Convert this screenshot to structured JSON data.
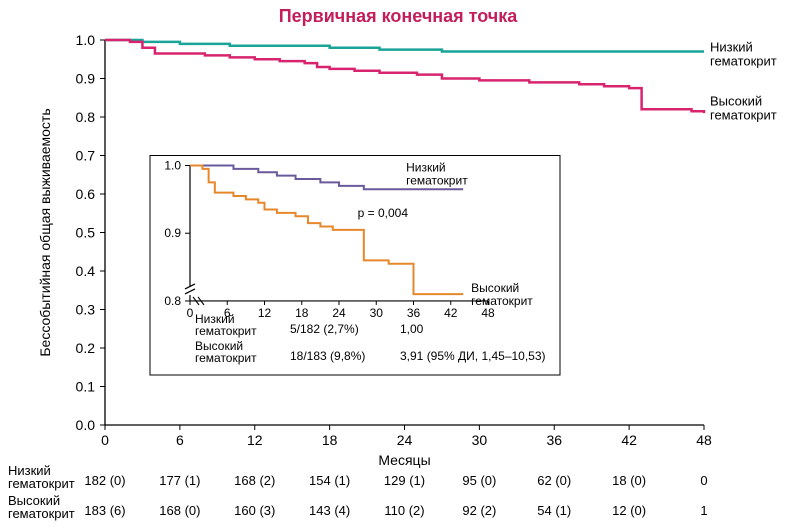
{
  "title": "Первичная конечная точка",
  "title_color": "#c41e5a",
  "background_color": "#ffffff",
  "main_chart": {
    "type": "kaplan-meier",
    "xlabel": "Месяцы",
    "ylabel": "Бессобытийная общая выживаемость",
    "xlim": [
      0,
      48
    ],
    "ylim": [
      0.0,
      1.0
    ],
    "xtick_step": 6,
    "ytick_step": 0.1,
    "xticks": [
      0,
      6,
      12,
      18,
      24,
      30,
      36,
      42,
      48
    ],
    "yticks": [
      "0.0",
      "0.1",
      "0.2",
      "0.3",
      "0.4",
      "0.5",
      "0.6",
      "0.7",
      "0.8",
      "0.9",
      "1.0"
    ],
    "label_fontsize": 14,
    "tick_fontsize": 14,
    "axis_color": "#000000",
    "line_width_main": 2.5,
    "line_width_axis": 1.2,
    "series": [
      {
        "name": "Низкий гематокрит",
        "label": "Низкий\nгематокрит",
        "color": "#1aa397",
        "points": [
          [
            0,
            1.0
          ],
          [
            3,
            0.995
          ],
          [
            6,
            0.99
          ],
          [
            10,
            0.985
          ],
          [
            14,
            0.985
          ],
          [
            18,
            0.98
          ],
          [
            22,
            0.975
          ],
          [
            26,
            0.975
          ],
          [
            27,
            0.97
          ],
          [
            34,
            0.97
          ],
          [
            38,
            0.97
          ],
          [
            42,
            0.97
          ],
          [
            48,
            0.97
          ]
        ]
      },
      {
        "name": "Высокий гематокрит",
        "label": "Высокий\nгематокрит",
        "color": "#d8246f",
        "points": [
          [
            0,
            1.0
          ],
          [
            2,
            0.995
          ],
          [
            3,
            0.98
          ],
          [
            4,
            0.965
          ],
          [
            6,
            0.965
          ],
          [
            8,
            0.96
          ],
          [
            10,
            0.955
          ],
          [
            12,
            0.95
          ],
          [
            14,
            0.945
          ],
          [
            16,
            0.94
          ],
          [
            17,
            0.93
          ],
          [
            18,
            0.925
          ],
          [
            20,
            0.92
          ],
          [
            22,
            0.915
          ],
          [
            25,
            0.91
          ],
          [
            27,
            0.9
          ],
          [
            29,
            0.9
          ],
          [
            30,
            0.895
          ],
          [
            34,
            0.89
          ],
          [
            36,
            0.89
          ],
          [
            38,
            0.885
          ],
          [
            40,
            0.88
          ],
          [
            42,
            0.875
          ],
          [
            43,
            0.82
          ],
          [
            47,
            0.815
          ],
          [
            48,
            0.81
          ]
        ]
      }
    ]
  },
  "inset_chart": {
    "type": "kaplan-meier",
    "xlim": [
      0,
      48
    ],
    "ylim": [
      0.8,
      1.0
    ],
    "xticks": [
      0,
      6,
      12,
      18,
      24,
      30,
      36,
      42,
      48
    ],
    "yticks": [
      "0.8",
      "0.9",
      "1.0"
    ],
    "axis_color": "#000000",
    "line_width_main": 2.0,
    "pvalue_label": "p = 0,004",
    "series": [
      {
        "name": "Низкий гематокрит",
        "label": "Низкий\nгематокрит",
        "color": "#6a5a9c",
        "points": [
          [
            0,
            1.0
          ],
          [
            5,
            1.0
          ],
          [
            7,
            0.995
          ],
          [
            9,
            0.995
          ],
          [
            11,
            0.99
          ],
          [
            14,
            0.985
          ],
          [
            17,
            0.98
          ],
          [
            21,
            0.975
          ],
          [
            24,
            0.97
          ],
          [
            27,
            0.97
          ],
          [
            28,
            0.965
          ],
          [
            32,
            0.965
          ],
          [
            36,
            0.965
          ],
          [
            42,
            0.965
          ],
          [
            44,
            0.965
          ]
        ]
      },
      {
        "name": "Высокий гематокрит",
        "label": "Высокий\nгематокрит",
        "color": "#e7872b",
        "points": [
          [
            0,
            1.0
          ],
          [
            2,
            0.995
          ],
          [
            3,
            0.975
          ],
          [
            4,
            0.96
          ],
          [
            5,
            0.96
          ],
          [
            7,
            0.955
          ],
          [
            9,
            0.95
          ],
          [
            11,
            0.945
          ],
          [
            12,
            0.935
          ],
          [
            14,
            0.93
          ],
          [
            17,
            0.925
          ],
          [
            19,
            0.915
          ],
          [
            21,
            0.91
          ],
          [
            23,
            0.905
          ],
          [
            25,
            0.905
          ],
          [
            27,
            0.905
          ],
          [
            28,
            0.86
          ],
          [
            32,
            0.855
          ],
          [
            35,
            0.855
          ],
          [
            36,
            0.81
          ],
          [
            42,
            0.81
          ],
          [
            44,
            0.81
          ]
        ]
      }
    ],
    "hr_table": {
      "rows": [
        {
          "label": "Низкий\nгематокрит",
          "events": "5/182 (2,7%)",
          "hr": "1,00"
        },
        {
          "label": "Высокий\nгематокрит",
          "events": "18/183 (9,8%)",
          "hr": "3,91 (95% ДИ, 1,45–10,53)"
        }
      ]
    }
  },
  "risk_table": {
    "xticks": [
      0,
      6,
      12,
      18,
      24,
      30,
      36,
      42,
      48
    ],
    "rows": [
      {
        "label": "Низкий\nгематокрит",
        "values": [
          "182 (0)",
          "177 (1)",
          "168 (2)",
          "154 (1)",
          "129 (1)",
          "95 (0)",
          "62 (0)",
          "18 (0)",
          "0"
        ]
      },
      {
        "label": "Высокий\nгематокрит",
        "values": [
          "183 (6)",
          "168 (0)",
          "160 (3)",
          "143 (4)",
          "110 (2)",
          "92 (2)",
          "54 (1)",
          "12 (0)",
          "1"
        ]
      }
    ]
  }
}
